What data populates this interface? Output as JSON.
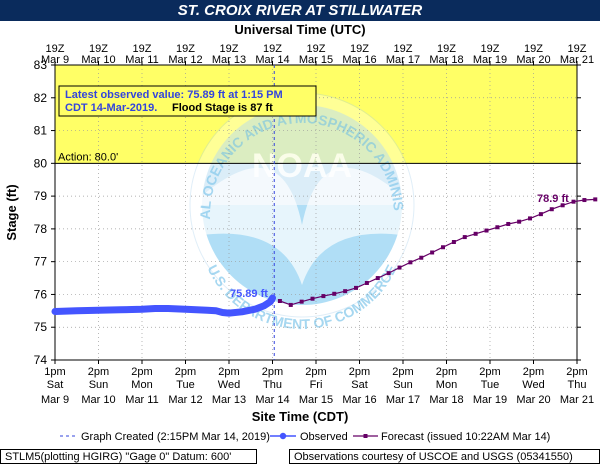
{
  "title": "ST. CROIX RIVER AT STILLWATER",
  "top_axis_title": "Universal Time (UTC)",
  "bottom_axis_title": "Site Time (CDT)",
  "ylabel": "Stage (ft)",
  "latest_obs_line1": "Latest observed value: 75.89 ft at 1:15 PM",
  "latest_obs_line2": "CDT 14-Mar-2019.",
  "flood_stage_text": "Flood Stage is 87 ft",
  "action_label": "Action: 80.0'",
  "obs_label": "75.89 ft",
  "fcst_label": "78.9 ft",
  "watermark": {
    "agency": "NATIONAL OCEANIC AND ATMOSPHERIC ADMINISTRATION",
    "dept": "U.S. DEPARTMENT OF COMMERCE",
    "logo": "NOAA"
  },
  "legend": {
    "graph_created": "Graph Created (2:15PM Mar 14, 2019)",
    "observed": "Observed",
    "forecast": "Forecast (issued 10:22AM Mar 14)"
  },
  "footer_left": "STLM5(plotting HGIRG) \"Gage 0\" Datum: 600'",
  "footer_right": "Observations courtesy of USCOE and USGS (05341550)",
  "colors": {
    "title_bar": "#0a2b5c",
    "flood_zone": "#ffff66",
    "observed": "#4455ff",
    "forecast": "#660066",
    "action_line": "#000000"
  },
  "chart_data": {
    "type": "line",
    "y_range": [
      74,
      83
    ],
    "y_ticks": [
      74,
      75,
      76,
      77,
      78,
      79,
      80,
      81,
      82,
      83
    ],
    "x_range_days_from_mar9_1pm": [
      0,
      12
    ],
    "top_ticks": [
      {
        "t": "19Z",
        "d": "Mar 9"
      },
      {
        "t": "19Z",
        "d": "Mar 10"
      },
      {
        "t": "19Z",
        "d": "Mar 11"
      },
      {
        "t": "19Z",
        "d": "Mar 12"
      },
      {
        "t": "19Z",
        "d": "Mar 13"
      },
      {
        "t": "19Z",
        "d": "Mar 14"
      },
      {
        "t": "19Z",
        "d": "Mar 15"
      },
      {
        "t": "19Z",
        "d": "Mar 16"
      },
      {
        "t": "19Z",
        "d": "Mar 17"
      },
      {
        "t": "19Z",
        "d": "Mar 18"
      },
      {
        "t": "19Z",
        "d": "Mar 19"
      },
      {
        "t": "19Z",
        "d": "Mar 20"
      },
      {
        "t": "19Z",
        "d": "Mar 21"
      }
    ],
    "bottom_ticks": [
      {
        "t": "1pm",
        "w": "Sat",
        "d": "Mar 9"
      },
      {
        "t": "2pm",
        "w": "Sun",
        "d": "Mar 10"
      },
      {
        "t": "2pm",
        "w": "Mon",
        "d": "Mar 11"
      },
      {
        "t": "2pm",
        "w": "Tue",
        "d": "Mar 12"
      },
      {
        "t": "2pm",
        "w": "Wed",
        "d": "Mar 13"
      },
      {
        "t": "2pm",
        "w": "Thu",
        "d": "Mar 14"
      },
      {
        "t": "2pm",
        "w": "Fri",
        "d": "Mar 15"
      },
      {
        "t": "2pm",
        "w": "Sat",
        "d": "Mar 16"
      },
      {
        "t": "2pm",
        "w": "Sun",
        "d": "Mar 17"
      },
      {
        "t": "2pm",
        "w": "Mon",
        "d": "Mar 18"
      },
      {
        "t": "2pm",
        "w": "Tue",
        "d": "Mar 19"
      },
      {
        "t": "2pm",
        "w": "Wed",
        "d": "Mar 20"
      },
      {
        "t": "2pm",
        "w": "Thu",
        "d": "Mar 21"
      }
    ],
    "flood_stage": 87,
    "action_stage": 80.0,
    "graph_created_day": 5.04,
    "observed": [
      [
        0.0,
        75.48
      ],
      [
        0.5,
        75.5
      ],
      [
        1.0,
        75.52
      ],
      [
        1.5,
        75.53
      ],
      [
        2.0,
        75.55
      ],
      [
        2.3,
        75.57
      ],
      [
        2.6,
        75.57
      ],
      [
        3.0,
        75.55
      ],
      [
        3.5,
        75.52
      ],
      [
        3.7,
        75.5
      ],
      [
        3.85,
        75.45
      ],
      [
        4.0,
        75.43
      ],
      [
        4.3,
        75.47
      ],
      [
        4.6,
        75.55
      ],
      [
        4.8,
        75.65
      ],
      [
        4.95,
        75.78
      ],
      [
        5.0,
        75.89
      ]
    ],
    "forecast": [
      [
        5.17,
        75.8
      ],
      [
        5.42,
        75.68
      ],
      [
        5.67,
        75.78
      ],
      [
        5.92,
        75.87
      ],
      [
        6.17,
        75.95
      ],
      [
        6.42,
        76.02
      ],
      [
        6.67,
        76.1
      ],
      [
        6.92,
        76.2
      ],
      [
        7.17,
        76.35
      ],
      [
        7.42,
        76.5
      ],
      [
        7.67,
        76.65
      ],
      [
        7.92,
        76.82
      ],
      [
        8.17,
        76.98
      ],
      [
        8.42,
        77.12
      ],
      [
        8.67,
        77.28
      ],
      [
        8.92,
        77.44
      ],
      [
        9.17,
        77.6
      ],
      [
        9.42,
        77.75
      ],
      [
        9.67,
        77.85
      ],
      [
        9.92,
        77.95
      ],
      [
        10.17,
        78.05
      ],
      [
        10.42,
        78.15
      ],
      [
        10.67,
        78.22
      ],
      [
        10.92,
        78.32
      ],
      [
        11.17,
        78.45
      ],
      [
        11.42,
        78.6
      ],
      [
        11.67,
        78.72
      ],
      [
        11.92,
        78.83
      ],
      [
        12.17,
        78.88
      ],
      [
        12.42,
        78.9
      ]
    ],
    "grid": true
  }
}
